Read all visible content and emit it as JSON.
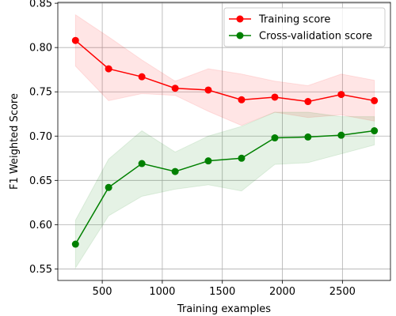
{
  "chart_data": {
    "type": "line",
    "title": "",
    "xlabel": "Training examples",
    "ylabel": "F1 Weighted Score",
    "xlim": [
      130,
      2900
    ],
    "ylim": [
      0.537,
      0.851
    ],
    "xticks": [
      500,
      1000,
      1500,
      2000,
      2500
    ],
    "yticks": [
      0.55,
      0.6,
      0.65,
      0.7,
      0.75,
      0.8,
      0.85
    ],
    "x_tick_labels": [
      "500",
      "1000",
      "1500",
      "2000",
      "2500"
    ],
    "y_tick_labels": [
      "0.55",
      "0.60",
      "0.65",
      "0.70",
      "0.75",
      "0.80",
      "0.85"
    ],
    "grid": true,
    "legend_position": "top-right",
    "x": [
      277,
      553,
      830,
      1107,
      1383,
      1660,
      1937,
      2213,
      2490,
      2766
    ],
    "series": [
      {
        "name": "Training score",
        "color": "#ff0000",
        "band_color": "#ff0000",
        "values": [
          0.808,
          0.776,
          0.767,
          0.754,
          0.752,
          0.741,
          0.744,
          0.739,
          0.747,
          0.74
        ],
        "lower": [
          0.779,
          0.74,
          0.748,
          0.746,
          0.728,
          0.712,
          0.727,
          0.721,
          0.724,
          0.717
        ],
        "upper": [
          0.837,
          0.812,
          0.786,
          0.762,
          0.776,
          0.77,
          0.762,
          0.757,
          0.77,
          0.763
        ]
      },
      {
        "name": "Cross-validation score",
        "color": "#008000",
        "band_color": "#008000",
        "values": [
          0.578,
          0.642,
          0.669,
          0.66,
          0.672,
          0.675,
          0.698,
          0.699,
          0.701,
          0.706
        ],
        "lower": [
          0.551,
          0.61,
          0.632,
          0.64,
          0.645,
          0.638,
          0.668,
          0.67,
          0.68,
          0.69
        ],
        "upper": [
          0.605,
          0.674,
          0.706,
          0.682,
          0.7,
          0.711,
          0.727,
          0.727,
          0.722,
          0.722
        ]
      }
    ]
  }
}
